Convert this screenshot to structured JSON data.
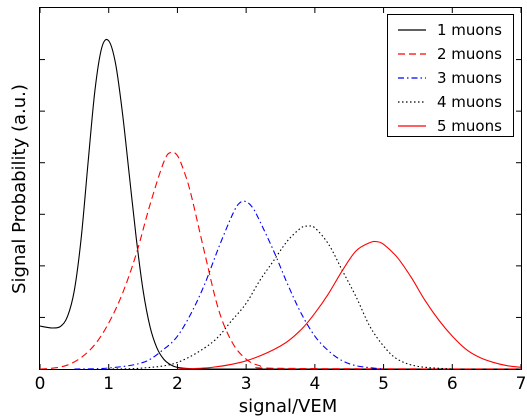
{
  "chart_data": {
    "type": "line",
    "title": "",
    "xlabel": "signal/VEM",
    "ylabel": "Signal Probability (a.u.)",
    "xlim": [
      0,
      7
    ],
    "ylim": [
      0,
      1.1
    ],
    "x_ticks": [
      "0",
      "1",
      "2",
      "3",
      "4",
      "5",
      "6",
      "7"
    ],
    "y_tick_labels_shown": false,
    "grid": false,
    "legend_position": "top-right",
    "series": [
      {
        "name": "1 muons",
        "color": "#000000",
        "style": "solid",
        "x": [
          0,
          0.1,
          0.2,
          0.3,
          0.4,
          0.5,
          0.6,
          0.7,
          0.8,
          0.9,
          1.0,
          1.1,
          1.2,
          1.3,
          1.4,
          1.5,
          1.6,
          1.7,
          1.8,
          1.9,
          2.0,
          2.2,
          2.5,
          3.0,
          7.0
        ],
        "y": [
          0.131,
          0.127,
          0.125,
          0.13,
          0.16,
          0.24,
          0.4,
          0.63,
          0.85,
          0.98,
          1.0,
          0.93,
          0.78,
          0.59,
          0.4,
          0.24,
          0.13,
          0.065,
          0.03,
          0.013,
          0.005,
          0.001,
          0,
          0,
          0
        ]
      },
      {
        "name": "2 muons",
        "color": "#ff0000",
        "style": "dashed",
        "x": [
          0,
          0.2,
          0.4,
          0.6,
          0.8,
          1.0,
          1.2,
          1.4,
          1.6,
          1.8,
          1.9,
          2.0,
          2.1,
          2.2,
          2.4,
          2.6,
          2.8,
          3.0,
          3.2,
          3.5,
          7.0
        ],
        "y": [
          0,
          0.003,
          0.012,
          0.035,
          0.075,
          0.14,
          0.23,
          0.35,
          0.5,
          0.63,
          0.66,
          0.65,
          0.6,
          0.53,
          0.35,
          0.18,
          0.08,
          0.03,
          0.01,
          0.002,
          0
        ]
      },
      {
        "name": "3 muons",
        "color": "#0000ff",
        "style": "dashdot",
        "x": [
          0.5,
          1.0,
          1.5,
          1.8,
          2.0,
          2.2,
          2.4,
          2.6,
          2.8,
          2.9,
          3.0,
          3.1,
          3.2,
          3.4,
          3.6,
          3.8,
          4.0,
          4.2,
          4.4,
          4.6,
          4.8,
          5.0
        ],
        "y": [
          0,
          0.003,
          0.02,
          0.06,
          0.1,
          0.17,
          0.26,
          0.37,
          0.47,
          0.505,
          0.51,
          0.49,
          0.45,
          0.36,
          0.26,
          0.17,
          0.1,
          0.055,
          0.025,
          0.01,
          0.004,
          0
        ]
      },
      {
        "name": "4 muons",
        "color": "#000000",
        "style": "dotted",
        "x": [
          1.0,
          1.5,
          2.0,
          2.5,
          2.8,
          3.0,
          3.2,
          3.4,
          3.6,
          3.8,
          3.9,
          4.0,
          4.2,
          4.4,
          4.6,
          4.8,
          5.0,
          5.2,
          5.5,
          6.0
        ],
        "y": [
          0,
          0.003,
          0.02,
          0.08,
          0.15,
          0.2,
          0.27,
          0.33,
          0.39,
          0.43,
          0.435,
          0.43,
          0.38,
          0.3,
          0.22,
          0.13,
          0.07,
          0.03,
          0.008,
          0
        ]
      },
      {
        "name": "5 muons",
        "color": "#ff0000",
        "style": "solid",
        "x": [
          2.0,
          2.5,
          3.0,
          3.5,
          3.8,
          4.0,
          4.2,
          4.4,
          4.6,
          4.8,
          4.9,
          5.0,
          5.2,
          5.4,
          5.6,
          5.8,
          6.0,
          6.2,
          6.4,
          6.6,
          6.8,
          7.0
        ],
        "y": [
          0,
          0.005,
          0.025,
          0.07,
          0.12,
          0.17,
          0.23,
          0.3,
          0.36,
          0.385,
          0.388,
          0.38,
          0.34,
          0.28,
          0.21,
          0.15,
          0.1,
          0.06,
          0.035,
          0.02,
          0.01,
          0.005
        ]
      }
    ]
  }
}
